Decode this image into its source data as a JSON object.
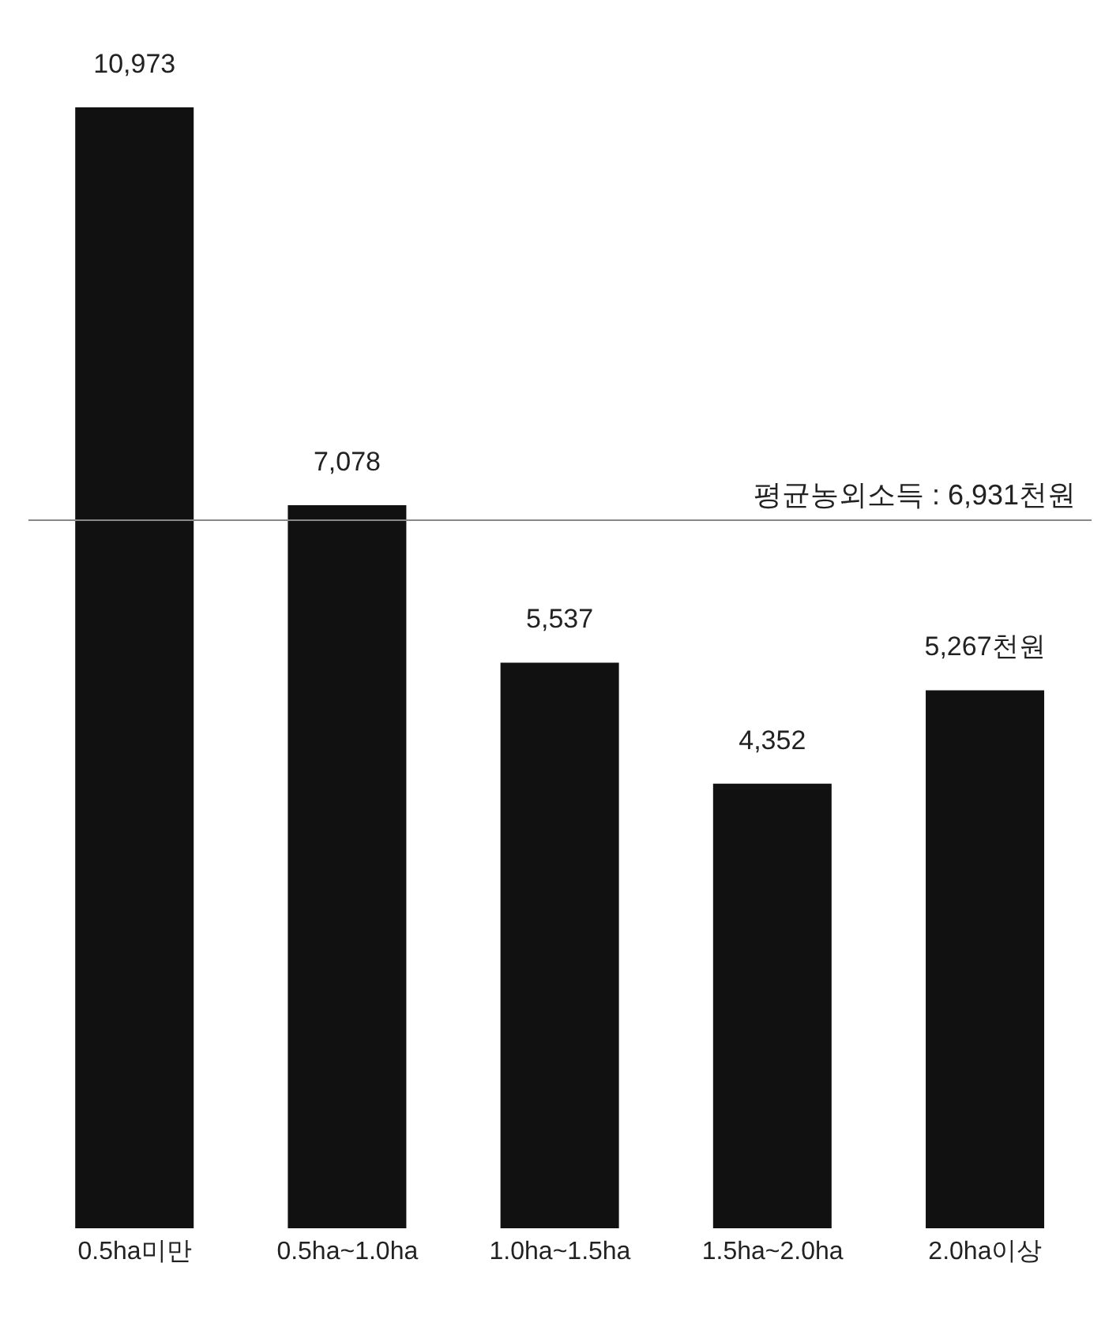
{
  "chart_data": {
    "type": "bar",
    "categories": [
      "0.5ha미만",
      "0.5ha~1.0ha",
      "1.0ha~1.5ha",
      "1.5ha~2.0ha",
      "2.0ha이상"
    ],
    "values": [
      10973,
      7078,
      5537,
      4352,
      5267
    ],
    "value_labels": [
      "10,973",
      "7,078",
      "5,537",
      "4,352",
      "5,267천원"
    ],
    "color": "#111111",
    "ref_lines": [
      {
        "axis": "y",
        "value": 6931,
        "label": "평균농외소득 : 6,931천원",
        "color": "#888888"
      }
    ],
    "grid": false,
    "legend": false
  }
}
